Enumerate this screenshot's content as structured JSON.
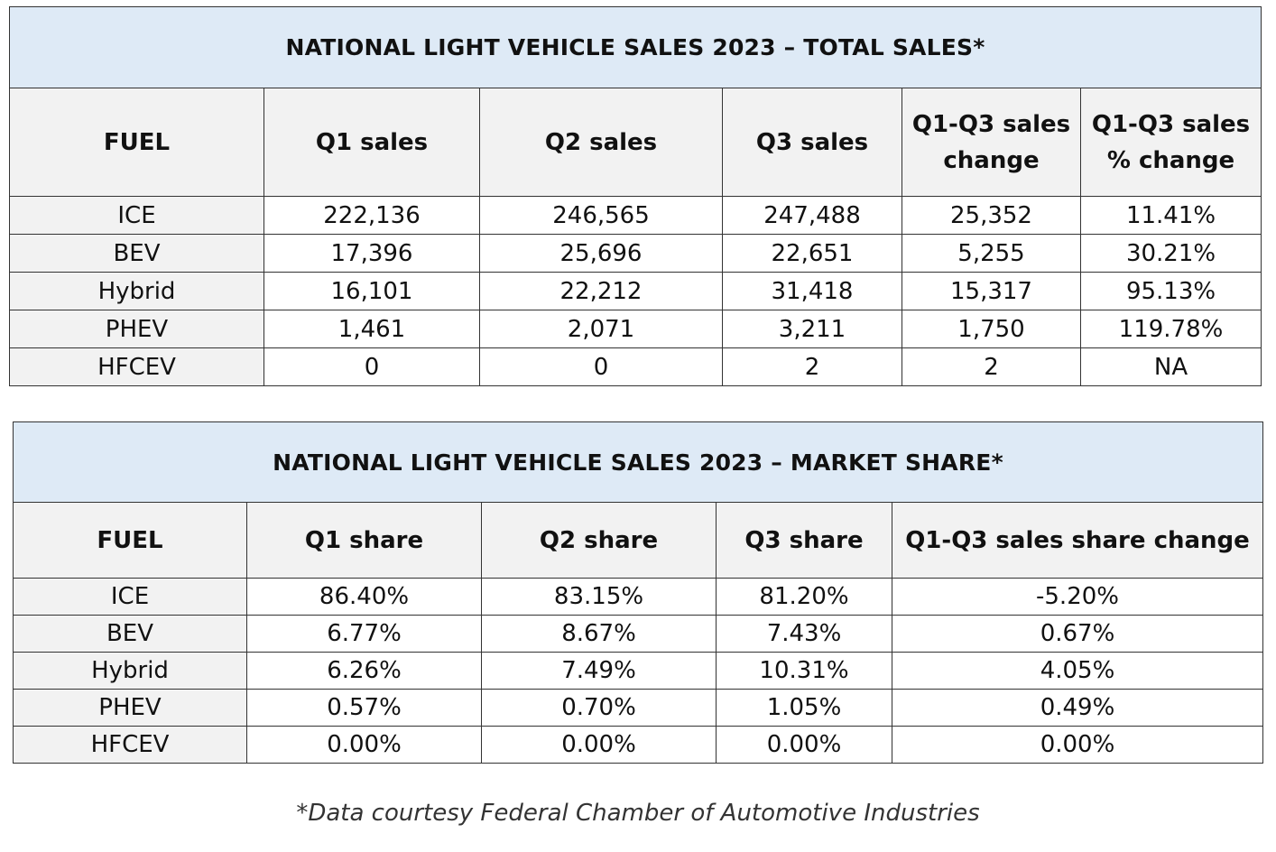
{
  "chart_data": [
    {
      "type": "table",
      "title": "NATIONAL LIGHT VEHICLE SALES 2023 – TOTAL SALES*",
      "columns": [
        "FUEL",
        "Q1 sales",
        "Q2 sales",
        "Q3 sales",
        "Q1-Q3 sales change",
        "Q1-Q3 sales  % change"
      ],
      "rows": [
        [
          "ICE",
          "222,136",
          "246,565",
          "247,488",
          "25,352",
          "11.41%"
        ],
        [
          "BEV",
          "17,396",
          "25,696",
          "22,651",
          "5,255",
          "30.21%"
        ],
        [
          "Hybrid",
          "16,101",
          "22,212",
          "31,418",
          "15,317",
          "95.13%"
        ],
        [
          "PHEV",
          "1,461",
          "2,071",
          "3,211",
          "1,750",
          "119.78%"
        ],
        [
          "HFCEV",
          "0",
          "0",
          "2",
          "2",
          "NA"
        ]
      ]
    },
    {
      "type": "table",
      "title": "NATIONAL LIGHT VEHICLE SALES 2023 – MARKET SHARE*",
      "columns": [
        "FUEL",
        "Q1 share",
        "Q2 share",
        "Q3 share",
        "Q1-Q3 sales share change"
      ],
      "rows": [
        [
          "ICE",
          "86.40%",
          "83.15%",
          "81.20%",
          "-5.20%"
        ],
        [
          "BEV",
          "6.77%",
          "8.67%",
          "7.43%",
          "0.67%"
        ],
        [
          "Hybrid",
          "6.26%",
          "7.49%",
          "10.31%",
          "4.05%"
        ],
        [
          "PHEV",
          "0.57%",
          "0.70%",
          "1.05%",
          "0.49%"
        ],
        [
          "HFCEV",
          "0.00%",
          "0.00%",
          "0.00%",
          "0.00%"
        ]
      ]
    }
  ],
  "footnote": "*Data courtesy Federal Chamber of Automotive Industries",
  "colors": {
    "title_background": "#deeaf6",
    "header_background": "#f2f2f2",
    "border": "#333333"
  }
}
